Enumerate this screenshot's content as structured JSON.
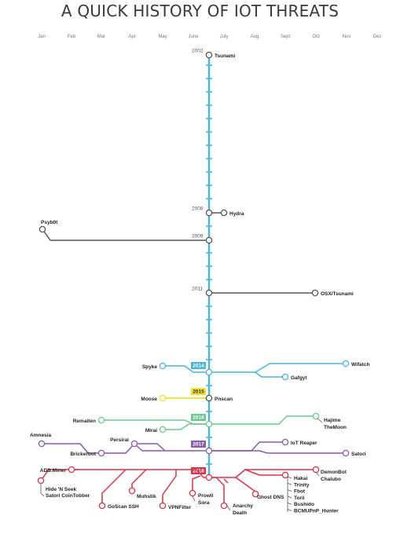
{
  "title": "A QUICK HISTORY OF IOT THREATS",
  "colors": {
    "trunk": "#4bb3dc",
    "neutral": "#555555",
    "blue": "#4bb3dc",
    "yellow": "#f2df2e",
    "green": "#6cc88f",
    "purple": "#8a5aab",
    "red": "#d9344b"
  },
  "months": [
    "Jan",
    "Feb",
    "Mar",
    "Apr",
    "May",
    "June",
    "July",
    "Aug",
    "Sept",
    "Oct",
    "Nov",
    "Dec"
  ],
  "years": [
    {
      "label": "2002",
      "plain": true
    },
    {
      "label": "2008",
      "plain": true
    },
    {
      "label": "2009",
      "plain": true
    },
    {
      "label": "2011",
      "plain": true
    },
    {
      "label": "2014",
      "color": "blue"
    },
    {
      "label": "2015",
      "color": "yellow"
    },
    {
      "label": "2016",
      "color": "green"
    },
    {
      "label": "2017",
      "color": "purple"
    },
    {
      "label": "2018",
      "color": "red"
    }
  ],
  "threats": [
    {
      "name": "Tsunami",
      "year": "2002"
    },
    {
      "name": "Hydra",
      "year": "2008"
    },
    {
      "name": "Psyb0t",
      "year": "2009"
    },
    {
      "name": "OSX/Tsunami",
      "year": "2011"
    },
    {
      "name": "Spyke",
      "year": "2014"
    },
    {
      "name": "Wifatch",
      "year": "2014"
    },
    {
      "name": "Gafgyt",
      "year": "2014"
    },
    {
      "name": "Moose",
      "year": "2015"
    },
    {
      "name": "Pnscan",
      "year": "2015"
    },
    {
      "name": "Remaiten",
      "year": "2016"
    },
    {
      "name": "Hajime",
      "year": "2016"
    },
    {
      "name": "TheMoon",
      "year": "2016"
    },
    {
      "name": "Mirai",
      "year": "2016"
    },
    {
      "name": "Amnesia",
      "year": "2017"
    },
    {
      "name": "Persirai",
      "year": "2017"
    },
    {
      "name": "IoT Reaper",
      "year": "2017"
    },
    {
      "name": "Brickerbot",
      "year": "2017"
    },
    {
      "name": "Satori",
      "year": "2017"
    },
    {
      "name": "ADB.Miner",
      "year": "2018"
    },
    {
      "name": "DemonBot",
      "year": "2018"
    },
    {
      "name": "Chalubo",
      "year": "2018"
    },
    {
      "name": "Hide 'N Seek",
      "year": "2018"
    },
    {
      "name": "Satori CoinTobber",
      "year": "2018"
    },
    {
      "name": "Muhstik",
      "year": "2018"
    },
    {
      "name": "GoScan SSH",
      "year": "2018"
    },
    {
      "name": "VPNFilter",
      "year": "2018"
    },
    {
      "name": "Prowli",
      "year": "2018"
    },
    {
      "name": "Sora",
      "year": "2018"
    },
    {
      "name": "Anarchy",
      "year": "2018"
    },
    {
      "name": "Death",
      "year": "2018"
    },
    {
      "name": "Ghost DNS",
      "year": "2018"
    },
    {
      "name": "Hakai",
      "year": "2018"
    },
    {
      "name": "Trinity",
      "year": "2018"
    },
    {
      "name": "Fbot",
      "year": "2018"
    },
    {
      "name": "Torii",
      "year": "2018"
    },
    {
      "name": "Bushido",
      "year": "2018"
    },
    {
      "name": "BCMUPnP_Hunter",
      "year": "2018"
    }
  ]
}
